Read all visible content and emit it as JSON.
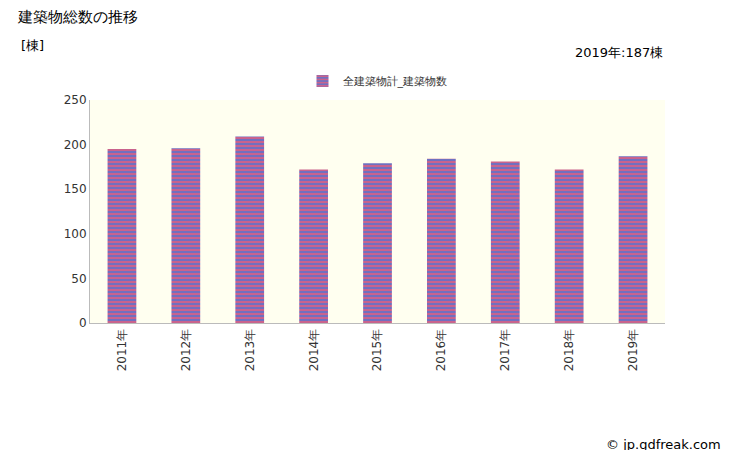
{
  "chart_data": {
    "type": "bar",
    "title": "建築物総数の推移",
    "ylabel": "[棟]",
    "categories": [
      "2011年",
      "2012年",
      "2013年",
      "2014年",
      "2015年",
      "2016年",
      "2017年",
      "2018年",
      "2019年"
    ],
    "series": [
      {
        "name": "全建築物計_建築物数",
        "color": "#7070c0",
        "values": [
          195,
          196,
          209,
          172,
          179,
          184,
          181,
          172,
          187
        ]
      }
    ],
    "ylim": [
      0,
      250
    ],
    "yticks": [
      0,
      50,
      100,
      150,
      200,
      250
    ],
    "grid": false,
    "legend": "top",
    "annotations": [
      "2019年:187棟",
      "© jp.gdfreak.com"
    ]
  }
}
